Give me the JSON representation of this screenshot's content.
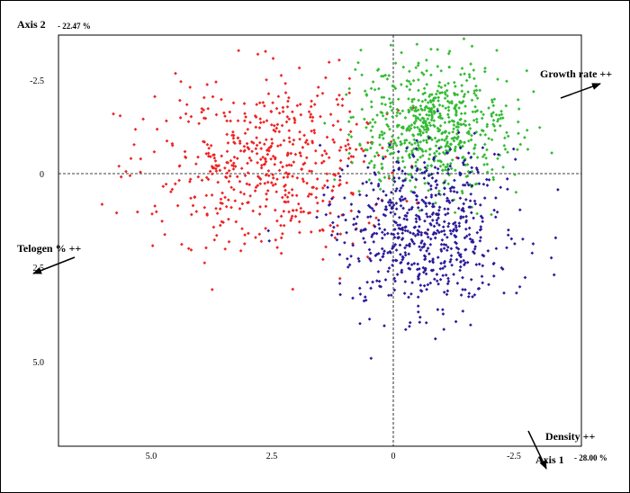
{
  "chart_data": {
    "type": "scatter",
    "xlabel": "Axis 1",
    "ylabel": "Axis 2",
    "x_inertia": "- 28.00 %",
    "y_inertia": "- 22.47 %",
    "x_reversed": true,
    "y_reversed": true,
    "xlim": [
      7.0,
      -3.9
    ],
    "ylim": [
      -3.6,
      7.3
    ],
    "x_ticks": [
      "5.0",
      "2.5",
      "0",
      "-2.5"
    ],
    "y_ticks": [
      "-2.5",
      "0",
      "2.5",
      "5.0"
    ],
    "reference_lines": "dashed at 0 on both axes",
    "grid": false,
    "series": [
      {
        "color": "#ee2222",
        "approx_points": 550,
        "center": [
          2.6,
          -0.2
        ],
        "spread": [
          1.6,
          1.5
        ]
      },
      {
        "color": "#33bb33",
        "approx_points": 650,
        "center": [
          -0.8,
          -1.2
        ],
        "spread": [
          1.1,
          1.1
        ]
      },
      {
        "color": "#2a1a99",
        "approx_points": 650,
        "center": [
          -0.6,
          1.5
        ],
        "spread": [
          1.2,
          1.4
        ]
      }
    ],
    "vectors": [
      {
        "label": "Growth rate ++",
        "color": "#000000"
      },
      {
        "label": "Telogen % ++",
        "color": "#000000"
      },
      {
        "label": "Density ++",
        "color": "#000000"
      }
    ]
  }
}
